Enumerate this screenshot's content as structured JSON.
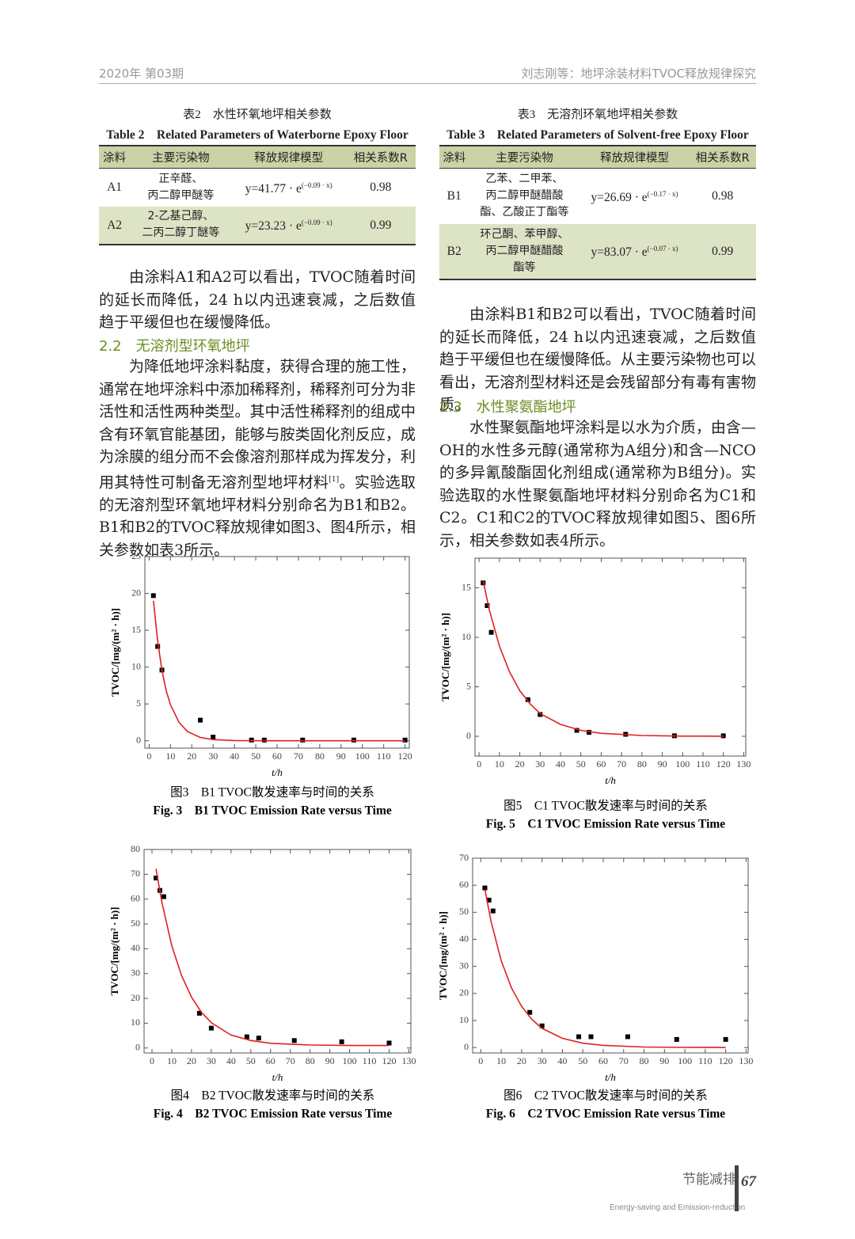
{
  "header": {
    "left": "2020年 第03期",
    "right": "刘志刚等：地坪涂装材料TVOC释放规律探究"
  },
  "table2": {
    "caption_cn": "表2　水性环氧地坪相关参数",
    "caption_en": "Table 2　Related Parameters of Waterborne Epoxy Floor",
    "columns": [
      "涂料",
      "主要污染物",
      "释放规律模型",
      "相关系数R"
    ],
    "rows": [
      {
        "name": "A1",
        "pollutants": [
          "正辛醛、",
          "丙二醇甲醚等"
        ],
        "formula": "y=41.77 · e",
        "exponent": "(−0.09 · x)",
        "r": "0.98"
      },
      {
        "name": "A2",
        "pollutants": [
          "2-乙基己醇、",
          "二丙二醇丁醚等"
        ],
        "formula": "y=23.23 · e",
        "exponent": "(−0.09 · x)",
        "r": "0.99"
      }
    ]
  },
  "table3": {
    "caption_cn": "表3　无溶剂环氧地坪相关参数",
    "caption_en": "Table 3　Related Parameters of Solvent-free Epoxy Floor",
    "columns": [
      "涂料",
      "主要污染物",
      "释放规律模型",
      "相关系数R"
    ],
    "rows": [
      {
        "name": "B1",
        "pollutants": [
          "乙苯、二甲苯、",
          "丙二醇甲醚醋酸",
          "酯、乙酸正丁酯等"
        ],
        "formula": "y=26.69 · e",
        "exponent": "(−0.17 · x)",
        "r": "0.98"
      },
      {
        "name": "B2",
        "pollutants": [
          "环己酮、苯甲醇、",
          "丙二醇甲醚醋酸",
          "酯等"
        ],
        "formula": "y=83.07 · e",
        "exponent": "(−0.07 · x)",
        "r": "0.99"
      }
    ]
  },
  "left_text": {
    "p1": "由涂料A1和A2可以看出，TVOC随着时间的延长而降低，24 h以内迅速衰减，之后数值趋于平缓但也在缓慢降低。",
    "heading": "2.2　无溶剂型环氧地坪",
    "p2_before": "为降低地坪涂料黏度，获得合理的施工性，通常在地坪涂料中添加稀释剂，稀释剂可分为非活性和活性两种类型。其中活性稀释剂的组成中含有环氧官能基团，能够与胺类固化剂反应，成为涂膜的组分而不会像溶剂那样成为挥发分，利用其特性可制备无溶剂型地坪材料",
    "p2_sup": "[1]",
    "p2_after": "。实验选取的无溶剂型环氧地坪材料分别命名为B1和B2。B1和B2的TVOC释放规律如图3、图4所示，相关参数如表3所示。"
  },
  "right_text": {
    "p1": "由涂料B1和B2可以看出，TVOC随着时间的延长而降低，24 h以内迅速衰减，之后数值趋于平缓但也在缓慢降低。从主要污染物也可以看出，无溶剂型材料还是会残留部分有毒有害物质。",
    "heading": "2.3　水性聚氨酯地坪",
    "p2": "水性聚氨酯地坪涂料是以水为介质，由含—OH的水性多元醇(通常称为A组分)和含—NCO的多异氰酸酯固化剂组成(通常称为B组分)。实验选取的水性聚氨酯地坪材料分别命名为C1和C2。C1和C2的TVOC释放规律如图5、图6所示，相关参数如表4所示。"
  },
  "chart_data": [
    {
      "type": "scatter",
      "caption_cn": "图3　B1 TVOC散发速率与时间的关系",
      "caption_en": "Fig. 3　B1 TVOC Emission Rate versus Time",
      "xlabel": "t/h",
      "ylabel": "TVOC/[mg/(m² · h)]",
      "xlim": [
        -2,
        122
      ],
      "ylim": [
        -1,
        25
      ],
      "xticks": [
        0,
        10,
        20,
        30,
        40,
        50,
        60,
        70,
        80,
        90,
        100,
        110,
        120
      ],
      "yticks": [
        0,
        5,
        10,
        15,
        20,
        25
      ],
      "series": [
        {
          "type": "scatter",
          "color": "#000000",
          "x": [
            2,
            4,
            6,
            24,
            30,
            48,
            54,
            72,
            96,
            120
          ],
          "values": [
            19.7,
            12.8,
            9.6,
            2.8,
            0.5,
            0.1,
            0.1,
            0.1,
            0.1,
            0.1
          ]
        },
        {
          "type": "line",
          "color": "#e02020",
          "x": [
            2,
            4,
            6,
            8,
            10,
            14,
            18,
            24,
            30,
            40,
            60,
            120
          ],
          "values": [
            19.0,
            13.5,
            9.6,
            6.8,
            4.9,
            2.5,
            1.25,
            0.45,
            0.16,
            0.03,
            0,
            0
          ]
        }
      ]
    },
    {
      "type": "scatter",
      "caption_cn": "图4　B2 TVOC散发速率与时间的关系",
      "caption_en": "Fig. 4　B2 TVOC Emission Rate versus Time",
      "xlabel": "t/h",
      "ylabel": "TVOC/[mg/(m² · h)]",
      "xlim": [
        -4,
        131
      ],
      "ylim": [
        -2,
        80
      ],
      "xticks": [
        0,
        10,
        20,
        30,
        40,
        50,
        60,
        70,
        80,
        90,
        100,
        110,
        120,
        130
      ],
      "yticks": [
        0,
        10,
        20,
        30,
        40,
        50,
        60,
        70,
        80
      ],
      "series": [
        {
          "type": "scatter",
          "color": "#000000",
          "x": [
            2,
            4,
            6,
            24,
            30,
            48,
            54,
            72,
            96,
            120
          ],
          "values": [
            68.5,
            63.5,
            61,
            14,
            8,
            4.5,
            4,
            3,
            2.5,
            2
          ]
        },
        {
          "type": "line",
          "color": "#e02020",
          "x": [
            2,
            5,
            10,
            15,
            20,
            25,
            30,
            40,
            50,
            60,
            80,
            100,
            120
          ],
          "values": [
            72.2,
            58.7,
            41.3,
            29.1,
            20.5,
            14.4,
            10.2,
            5.2,
            3.0,
            1.9,
            1.2,
            1.0,
            1.0
          ]
        }
      ]
    },
    {
      "type": "scatter",
      "caption_cn": "图5　C1 TVOC散发速率与时间的关系",
      "caption_en": "Fig. 5　C1 TVOC Emission Rate versus Time",
      "xlabel": "t/h",
      "ylabel": "TVOC/[mg/(m² · h)]",
      "xlim": [
        -2,
        131
      ],
      "ylim": [
        -2,
        18
      ],
      "xticks": [
        0,
        10,
        20,
        30,
        40,
        50,
        60,
        70,
        80,
        90,
        100,
        110,
        120,
        130
      ],
      "yticks": [
        0,
        5,
        10,
        15
      ],
      "series": [
        {
          "type": "scatter",
          "color": "#000000",
          "x": [
            2,
            4,
            6,
            24,
            30,
            48,
            54,
            72,
            96,
            120
          ],
          "values": [
            15.5,
            13.2,
            10.5,
            3.7,
            2.2,
            0.6,
            0.4,
            0.2,
            0.05,
            0.05
          ]
        },
        {
          "type": "line",
          "color": "#e02020",
          "x": [
            2,
            5,
            10,
            15,
            20,
            25,
            30,
            40,
            50,
            60,
            80,
            100,
            120
          ],
          "values": [
            15.7,
            12.8,
            9.1,
            6.5,
            4.6,
            3.3,
            2.3,
            1.2,
            0.6,
            0.3,
            0.08,
            0.02,
            0.01
          ]
        }
      ]
    },
    {
      "type": "scatter",
      "caption_cn": "图6　C2 TVOC散发速率与时间的关系",
      "caption_en": "Fig. 6　C2 TVOC Emission Rate versus Time",
      "xlabel": "t/h",
      "ylabel": "TVOC/[mg/(m² · h)]",
      "xlim": [
        -4,
        131
      ],
      "ylim": [
        -2,
        70
      ],
      "xticks": [
        0,
        10,
        20,
        30,
        40,
        50,
        60,
        70,
        80,
        90,
        100,
        110,
        120,
        130
      ],
      "yticks": [
        0,
        10,
        20,
        30,
        40,
        50,
        60,
        70
      ],
      "series": [
        {
          "type": "scatter",
          "color": "#000000",
          "x": [
            2,
            4,
            6,
            24,
            30,
            48,
            54,
            72,
            96,
            120
          ],
          "values": [
            59,
            54.5,
            50.5,
            13,
            8,
            4,
            4,
            4,
            3,
            3
          ]
        },
        {
          "type": "line",
          "color": "#e02020",
          "x": [
            2,
            5,
            10,
            15,
            20,
            25,
            30,
            40,
            50,
            60,
            80,
            100,
            120
          ],
          "values": [
            58.5,
            46.7,
            32.1,
            22.1,
            15.2,
            10.4,
            7.1,
            3.4,
            1.6,
            0.8,
            0.2,
            0.05,
            0.01
          ]
        }
      ]
    }
  ],
  "footer": {
    "title": "节能减排",
    "subtitle": "Energy-saving and Emission-reduction",
    "page": "67"
  }
}
